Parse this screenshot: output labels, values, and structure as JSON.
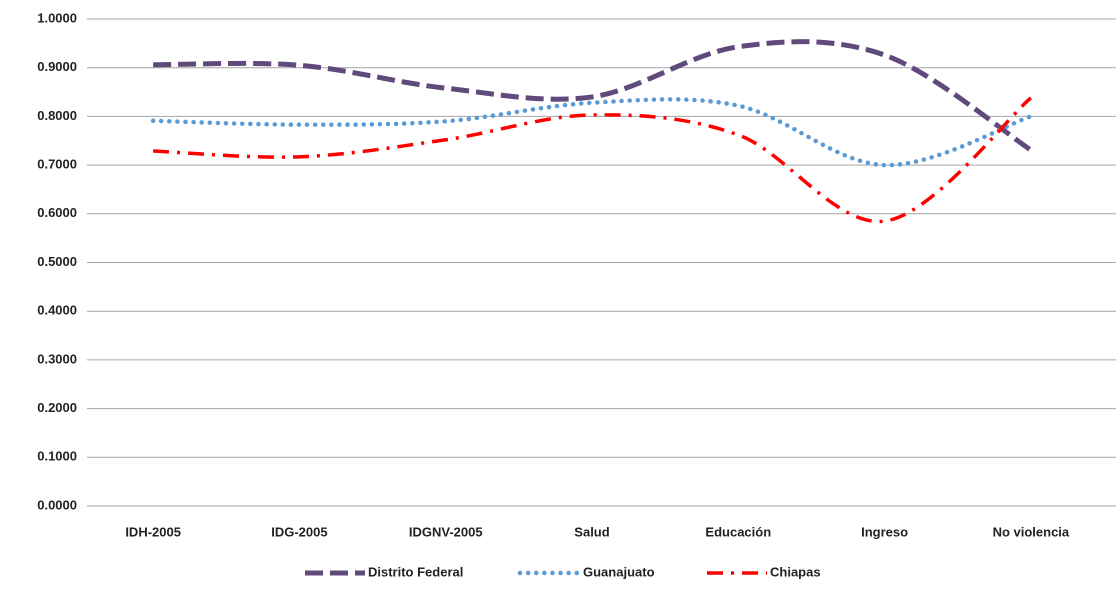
{
  "chart_data": {
    "type": "line",
    "categories": [
      "IDH-2005",
      "IDG-2005",
      "IDGNV-2005",
      "Salud",
      "Educación",
      "Ingreso",
      "No violencia"
    ],
    "series": [
      {
        "name": "Distrito Federal",
        "color": "#604a7b",
        "values": [
          0.906,
          0.905,
          0.858,
          0.84,
          0.943,
          0.926,
          0.731
        ]
      },
      {
        "name": "Guanajuato",
        "color": "#5b9bd5",
        "values": [
          0.791,
          0.783,
          0.79,
          0.828,
          0.822,
          0.7,
          0.8
        ]
      },
      {
        "name": "Chiapas",
        "color": "#ff0000",
        "values": [
          0.729,
          0.717,
          0.752,
          0.803,
          0.762,
          0.585,
          0.838
        ]
      }
    ],
    "ylim": [
      0,
      1
    ],
    "yticks": [
      {
        "value": 0,
        "label": "0.0000"
      },
      {
        "value": 0.1,
        "label": "0.1000"
      },
      {
        "value": 0.2,
        "label": "0.2000"
      },
      {
        "value": 0.3,
        "label": "0.3000"
      },
      {
        "value": 0.4,
        "label": "0.4000"
      },
      {
        "value": 0.5,
        "label": "0.5000"
      },
      {
        "value": 0.6,
        "label": "0.6000"
      },
      {
        "value": 0.7,
        "label": "0.7000"
      },
      {
        "value": 0.8,
        "label": "0.8000"
      },
      {
        "value": 0.9,
        "label": "0.9000"
      },
      {
        "value": 1,
        "label": "1.0000"
      }
    ],
    "grid": true,
    "legend": "bottom"
  }
}
